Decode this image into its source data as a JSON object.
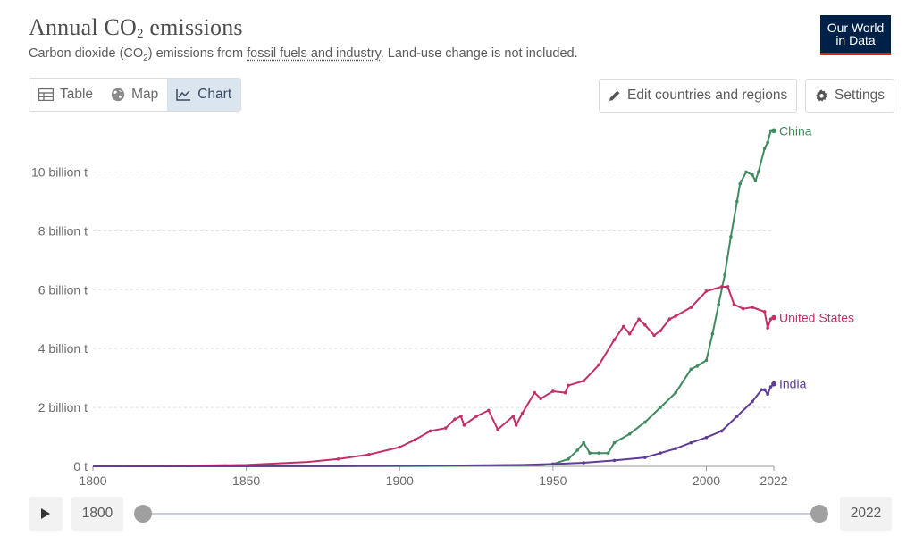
{
  "header": {
    "title_main": "Annual CO",
    "title_sub": "2",
    "title_end": " emissions",
    "subtitle_a": "Carbon dioxide (CO",
    "subtitle_sub": "2",
    "subtitle_b": ") emissions from ",
    "subtitle_link": "fossil fuels and industry",
    "subtitle_c": ". Land-use change is not included.",
    "logo_line1": "Our World",
    "logo_line2": "in Data"
  },
  "tabs": [
    {
      "label": "Table",
      "icon": "table-icon"
    },
    {
      "label": "Map",
      "icon": "globe-icon"
    },
    {
      "label": "Chart",
      "icon": "line-chart-icon",
      "active": true
    }
  ],
  "buttons": {
    "edit_label": "Edit countries and regions",
    "settings_label": "Settings"
  },
  "timeline": {
    "start_year": "1800",
    "end_year": "2022"
  },
  "colors": {
    "china": "#3f8a5f",
    "us": "#c42f6a",
    "india": "#5f3c96",
    "grid": "#dddddd",
    "axis_text": "#6a6a6a"
  },
  "chart_data": {
    "type": "line",
    "title": "Annual CO₂ emissions",
    "xlim": [
      1800,
      2022
    ],
    "ylim": [
      0,
      11.5
    ],
    "y_unit": "billion t",
    "x_ticks": [
      "1800",
      "1850",
      "1900",
      "1950",
      "2000",
      "2022"
    ],
    "y_ticks": [
      {
        "value": 0,
        "label": "0 t"
      },
      {
        "value": 2,
        "label": "2 billion t"
      },
      {
        "value": 4,
        "label": "4 billion t"
      },
      {
        "value": 6,
        "label": "6 billion t"
      },
      {
        "value": 8,
        "label": "8 billion t"
      },
      {
        "value": 10,
        "label": "10 billion t"
      }
    ],
    "grid": true,
    "series": [
      {
        "name": "China",
        "color": "#3f8a5f",
        "points": [
          [
            1800,
            0
          ],
          [
            1900,
            0.005
          ],
          [
            1930,
            0.02
          ],
          [
            1945,
            0.03
          ],
          [
            1950,
            0.08
          ],
          [
            1955,
            0.25
          ],
          [
            1958,
            0.55
          ],
          [
            1960,
            0.8
          ],
          [
            1962,
            0.45
          ],
          [
            1965,
            0.45
          ],
          [
            1968,
            0.45
          ],
          [
            1970,
            0.8
          ],
          [
            1975,
            1.1
          ],
          [
            1980,
            1.5
          ],
          [
            1985,
            2.0
          ],
          [
            1990,
            2.5
          ],
          [
            1995,
            3.3
          ],
          [
            1997,
            3.4
          ],
          [
            2000,
            3.6
          ],
          [
            2002,
            4.5
          ],
          [
            2004,
            5.5
          ],
          [
            2006,
            6.5
          ],
          [
            2008,
            7.8
          ],
          [
            2010,
            9.0
          ],
          [
            2011,
            9.6
          ],
          [
            2013,
            10.0
          ],
          [
            2015,
            9.9
          ],
          [
            2016,
            9.7
          ],
          [
            2017,
            10.0
          ],
          [
            2019,
            10.8
          ],
          [
            2020,
            11.0
          ],
          [
            2021,
            11.4
          ],
          [
            2022,
            11.4
          ]
        ]
      },
      {
        "name": "United States",
        "color": "#c42f6a",
        "points": [
          [
            1800,
            0.002
          ],
          [
            1820,
            0.005
          ],
          [
            1850,
            0.05
          ],
          [
            1860,
            0.1
          ],
          [
            1870,
            0.15
          ],
          [
            1880,
            0.25
          ],
          [
            1890,
            0.4
          ],
          [
            1900,
            0.65
          ],
          [
            1905,
            0.9
          ],
          [
            1910,
            1.2
          ],
          [
            1915,
            1.3
          ],
          [
            1918,
            1.6
          ],
          [
            1920,
            1.7
          ],
          [
            1921,
            1.4
          ],
          [
            1925,
            1.7
          ],
          [
            1929,
            1.9
          ],
          [
            1932,
            1.25
          ],
          [
            1937,
            1.7
          ],
          [
            1938,
            1.4
          ],
          [
            1940,
            1.8
          ],
          [
            1944,
            2.5
          ],
          [
            1946,
            2.3
          ],
          [
            1950,
            2.55
          ],
          [
            1954,
            2.5
          ],
          [
            1955,
            2.75
          ],
          [
            1960,
            2.9
          ],
          [
            1965,
            3.45
          ],
          [
            1970,
            4.3
          ],
          [
            1973,
            4.75
          ],
          [
            1975,
            4.5
          ],
          [
            1978,
            5.0
          ],
          [
            1980,
            4.8
          ],
          [
            1983,
            4.45
          ],
          [
            1985,
            4.6
          ],
          [
            1988,
            5.0
          ],
          [
            1990,
            5.1
          ],
          [
            1995,
            5.4
          ],
          [
            2000,
            5.95
          ],
          [
            2005,
            6.1
          ],
          [
            2007,
            6.1
          ],
          [
            2009,
            5.5
          ],
          [
            2012,
            5.35
          ],
          [
            2015,
            5.4
          ],
          [
            2019,
            5.25
          ],
          [
            2020,
            4.7
          ],
          [
            2021,
            5.0
          ],
          [
            2022,
            5.05
          ]
        ]
      },
      {
        "name": "India",
        "color": "#5f3c96",
        "points": [
          [
            1800,
            0
          ],
          [
            1880,
            0.01
          ],
          [
            1900,
            0.02
          ],
          [
            1920,
            0.03
          ],
          [
            1940,
            0.05
          ],
          [
            1950,
            0.08
          ],
          [
            1960,
            0.12
          ],
          [
            1970,
            0.2
          ],
          [
            1980,
            0.3
          ],
          [
            1985,
            0.45
          ],
          [
            1990,
            0.6
          ],
          [
            1995,
            0.8
          ],
          [
            2000,
            0.98
          ],
          [
            2005,
            1.2
          ],
          [
            2010,
            1.7
          ],
          [
            2015,
            2.2
          ],
          [
            2018,
            2.6
          ],
          [
            2019,
            2.6
          ],
          [
            2020,
            2.45
          ],
          [
            2021,
            2.7
          ],
          [
            2022,
            2.8
          ]
        ]
      }
    ]
  }
}
